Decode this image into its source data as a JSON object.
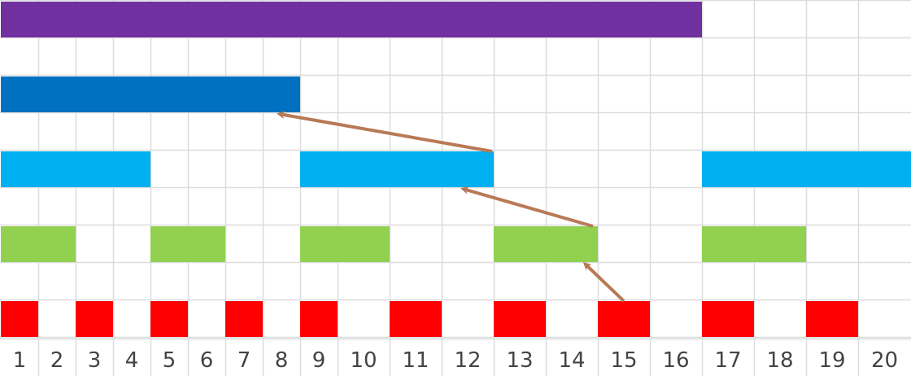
{
  "diagram": {
    "columns": [
      "1",
      "2",
      "3",
      "4",
      "5",
      "6",
      "7",
      "8",
      "9",
      "10",
      "11",
      "12",
      "13",
      "14",
      "15",
      "16",
      "17",
      "18",
      "19",
      "20"
    ],
    "grid_color": "#dcdcdc",
    "arrow_color": "#b87a56",
    "rows": [
      {
        "name": "purple",
        "color": "#7030a0",
        "bars": [
          [
            1,
            16
          ]
        ]
      },
      {
        "name": "dark-blue",
        "color": "#0070c0",
        "bars": [
          [
            1,
            8
          ]
        ]
      },
      {
        "name": "light-blue",
        "color": "#00b0f0",
        "bars": [
          [
            1,
            4
          ],
          [
            9,
            12
          ],
          [
            17,
            20
          ]
        ]
      },
      {
        "name": "green",
        "color": "#92d050",
        "bars": [
          [
            1,
            2
          ],
          [
            5,
            6
          ],
          [
            9,
            10
          ],
          [
            13,
            14
          ],
          [
            17,
            18
          ]
        ]
      },
      {
        "name": "red",
        "color": "#ff0000",
        "bars": [
          [
            1,
            1
          ],
          [
            3,
            3
          ],
          [
            5,
            5
          ],
          [
            7,
            7
          ],
          [
            9,
            9
          ],
          [
            11,
            11
          ],
          [
            13,
            13
          ],
          [
            15,
            15
          ],
          [
            17,
            17
          ],
          [
            19,
            19
          ]
        ]
      }
    ],
    "arrows": [
      {
        "from_row": 2,
        "from_col": 12,
        "to_row": 1,
        "to_col": 8
      },
      {
        "from_row": 3,
        "from_col": 14,
        "to_row": 2,
        "to_col": 12
      },
      {
        "from_row": 4,
        "from_col": 15,
        "to_row": 3,
        "to_col": 14
      }
    ]
  }
}
